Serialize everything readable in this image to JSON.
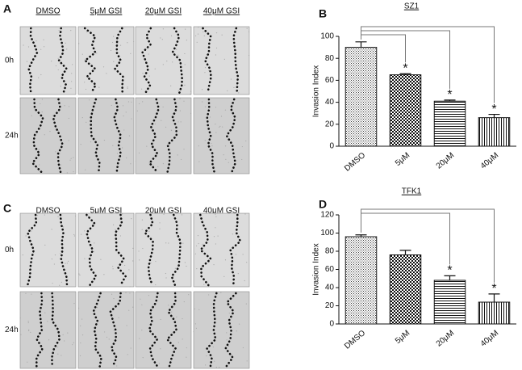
{
  "image_panels": [
    {
      "panel": "A",
      "columns": [
        "DMSO",
        "5μM GSI",
        "20μM GSI",
        "40μM GSI"
      ],
      "rows": [
        "0h",
        "24h"
      ]
    },
    {
      "panel": "C",
      "columns": [
        "DMSO",
        "5μM GSI",
        "20μM GSI",
        "40μM GSI"
      ],
      "rows": [
        "0h",
        "24h"
      ]
    }
  ],
  "chart_data": [
    {
      "type": "bar",
      "panel": "B",
      "title": "SZ1",
      "ylabel": "Invasion Index",
      "categories": [
        "DMSO",
        "5μM",
        "20μM",
        "40μM"
      ],
      "values": [
        90,
        65,
        41,
        26
      ],
      "errors": [
        5,
        1,
        1,
        3
      ],
      "significance": [
        null,
        "*",
        "*",
        "*"
      ],
      "ylim": [
        0,
        100
      ],
      "yticks": [
        0,
        20,
        40,
        60,
        80,
        100
      ]
    },
    {
      "type": "bar",
      "panel": "D",
      "title": "TFK1",
      "ylabel": "Invasion Index",
      "categories": [
        "DMSO",
        "5μM",
        "20μM",
        "40μM"
      ],
      "values": [
        96,
        76,
        48,
        24
      ],
      "errors": [
        2,
        5,
        5,
        9
      ],
      "significance": [
        null,
        null,
        "*",
        "*"
      ],
      "ylim": [
        0,
        120
      ],
      "yticks": [
        0,
        20,
        40,
        60,
        80,
        100,
        120
      ]
    }
  ]
}
